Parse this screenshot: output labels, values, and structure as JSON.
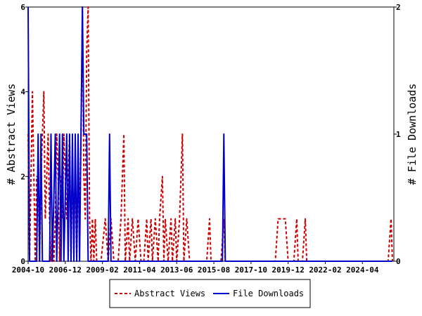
{
  "chart_data": {
    "type": "line",
    "title": "",
    "xlabel": "",
    "ylabel_left": "# Abstract Views",
    "ylabel_right": "# File Downloads",
    "x_range": [
      "2004-10",
      "2026-02"
    ],
    "x_ticks": [
      "2004-10",
      "2006-12",
      "2009-02",
      "2011-04",
      "2013-06",
      "2015-08",
      "2017-10",
      "2019-12",
      "2022-02",
      "2024-04"
    ],
    "y_left": {
      "min": 0,
      "max": 6,
      "ticks": [
        "0",
        "2",
        "4",
        "6"
      ]
    },
    "y_right": {
      "min": 0,
      "max": 2,
      "ticks": [
        "0",
        "1",
        "2"
      ]
    },
    "grid": false,
    "legend_position": "bottom",
    "series": [
      {
        "name": "Abstract Views",
        "axis": "left",
        "color": "#cc0000",
        "style": "dashed",
        "points": [
          [
            "2004-10",
            3
          ],
          [
            "2004-11",
            0
          ],
          [
            "2004-12",
            2
          ],
          [
            "2005-01",
            4
          ],
          [
            "2005-02",
            2
          ],
          [
            "2005-03",
            0
          ],
          [
            "2005-04",
            2
          ],
          [
            "2005-05",
            2
          ],
          [
            "2005-06",
            0
          ],
          [
            "2005-07",
            2
          ],
          [
            "2005-08",
            3
          ],
          [
            "2005-09",
            4
          ],
          [
            "2005-10",
            1
          ],
          [
            "2005-11",
            2
          ],
          [
            "2005-12",
            3
          ],
          [
            "2006-01",
            1
          ],
          [
            "2006-02",
            0
          ],
          [
            "2006-03",
            1
          ],
          [
            "2006-04",
            0
          ],
          [
            "2006-05",
            1
          ],
          [
            "2006-06",
            3
          ],
          [
            "2006-07",
            2
          ],
          [
            "2006-08",
            0
          ],
          [
            "2006-09",
            2
          ],
          [
            "2006-10",
            1
          ],
          [
            "2006-11",
            3
          ],
          [
            "2006-12",
            2
          ],
          [
            "2007-01",
            1
          ],
          [
            "2007-02",
            2
          ],
          [
            "2007-03",
            3
          ],
          [
            "2007-04",
            0
          ],
          [
            "2007-05",
            2
          ],
          [
            "2007-06",
            1
          ],
          [
            "2007-07",
            2
          ],
          [
            "2007-08",
            0
          ],
          [
            "2007-09",
            2
          ],
          [
            "2007-10",
            1
          ],
          [
            "2007-11",
            3
          ],
          [
            "2007-12",
            6
          ],
          [
            "2008-01",
            2
          ],
          [
            "2008-02",
            1
          ],
          [
            "2008-03",
            5
          ],
          [
            "2008-04",
            6
          ],
          [
            "2008-05",
            1
          ],
          [
            "2008-06",
            0
          ],
          [
            "2008-07",
            1
          ],
          [
            "2008-08",
            0
          ],
          [
            "2008-09",
            1
          ],
          [
            "2008-10",
            0
          ],
          [
            "2008-11",
            0
          ],
          [
            "2009-01",
            0
          ],
          [
            "2009-04",
            1
          ],
          [
            "2009-06",
            0
          ],
          [
            "2009-08",
            1
          ],
          [
            "2009-10",
            0
          ],
          [
            "2010-01",
            0
          ],
          [
            "2010-03",
            1
          ],
          [
            "2010-05",
            3
          ],
          [
            "2010-06",
            0
          ],
          [
            "2010-08",
            1
          ],
          [
            "2010-09",
            0
          ],
          [
            "2010-11",
            1
          ],
          [
            "2011-01",
            0
          ],
          [
            "2011-03",
            1
          ],
          [
            "2011-05",
            0
          ],
          [
            "2011-07",
            0
          ],
          [
            "2011-09",
            1
          ],
          [
            "2011-10",
            0
          ],
          [
            "2011-12",
            1
          ],
          [
            "2012-01",
            0
          ],
          [
            "2012-03",
            1
          ],
          [
            "2012-05",
            0
          ],
          [
            "2012-06",
            1
          ],
          [
            "2012-08",
            2
          ],
          [
            "2012-09",
            0
          ],
          [
            "2012-10",
            1
          ],
          [
            "2012-12",
            0
          ],
          [
            "2013-02",
            1
          ],
          [
            "2013-03",
            0
          ],
          [
            "2013-05",
            1
          ],
          [
            "2013-06",
            0
          ],
          [
            "2013-08",
            1
          ],
          [
            "2013-09",
            2
          ],
          [
            "2013-10",
            3
          ],
          [
            "2013-11",
            0
          ],
          [
            "2014-01",
            1
          ],
          [
            "2014-03",
            0
          ],
          [
            "2014-06",
            0
          ],
          [
            "2015-03",
            0
          ],
          [
            "2015-05",
            1
          ],
          [
            "2015-06",
            0
          ],
          [
            "2016-01",
            0
          ],
          [
            "2016-03",
            1
          ],
          [
            "2016-04",
            0
          ],
          [
            "2018-01",
            0
          ],
          [
            "2019-03",
            0
          ],
          [
            "2019-05",
            1
          ],
          [
            "2019-10",
            1
          ],
          [
            "2019-12",
            0
          ],
          [
            "2020-04",
            0
          ],
          [
            "2020-06",
            1
          ],
          [
            "2020-07",
            0
          ],
          [
            "2020-10",
            0
          ],
          [
            "2020-12",
            1
          ],
          [
            "2021-01",
            0
          ],
          [
            "2025-10",
            0
          ],
          [
            "2025-12",
            1
          ],
          [
            "2026-01",
            0
          ]
        ]
      },
      {
        "name": "File Downloads",
        "axis": "right",
        "color": "#0000cc",
        "style": "solid",
        "points": [
          [
            "2004-10",
            2
          ],
          [
            "2004-11",
            0
          ],
          [
            "2005-04",
            0
          ],
          [
            "2005-05",
            1
          ],
          [
            "2005-06",
            0
          ],
          [
            "2005-07",
            1
          ],
          [
            "2005-08",
            0
          ],
          [
            "2006-01",
            0
          ],
          [
            "2006-02",
            1
          ],
          [
            "2006-03",
            0
          ],
          [
            "2006-05",
            1
          ],
          [
            "2006-06",
            0
          ],
          [
            "2006-08",
            1
          ],
          [
            "2006-09",
            0
          ],
          [
            "2006-10",
            1
          ],
          [
            "2006-11",
            0
          ],
          [
            "2007-01",
            1
          ],
          [
            "2007-02",
            0
          ],
          [
            "2007-03",
            1
          ],
          [
            "2007-04",
            0
          ],
          [
            "2007-05",
            1
          ],
          [
            "2007-06",
            0
          ],
          [
            "2007-07",
            1
          ],
          [
            "2007-08",
            0
          ],
          [
            "2007-09",
            1
          ],
          [
            "2007-10",
            0
          ],
          [
            "2007-11",
            1
          ],
          [
            "2007-12",
            2
          ],
          [
            "2008-01",
            1
          ],
          [
            "2008-02",
            1
          ],
          [
            "2008-03",
            1
          ],
          [
            "2008-04",
            0
          ],
          [
            "2009-06",
            0
          ],
          [
            "2009-07",
            1
          ],
          [
            "2009-08",
            0
          ],
          [
            "2010-01",
            0
          ],
          [
            "2016-02",
            0
          ],
          [
            "2016-03",
            1
          ],
          [
            "2016-04",
            0
          ],
          [
            "2026-01",
            0
          ]
        ]
      }
    ]
  }
}
